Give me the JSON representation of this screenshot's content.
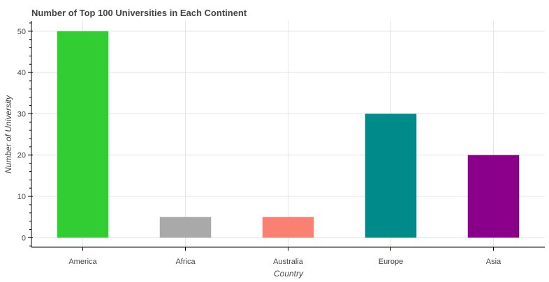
{
  "chart_data": {
    "type": "bar",
    "title": "Number of Top 100 Universities in Each Continent",
    "xlabel": "Country",
    "ylabel": "Number of University",
    "categories": [
      "America",
      "Africa",
      "Australia",
      "Europe",
      "Asia"
    ],
    "values": [
      50,
      5,
      5,
      30,
      20
    ],
    "colors": [
      "#32cd32",
      "#a9a9a9",
      "#fa8072",
      "#008b8b",
      "#8b008b"
    ],
    "ylim": [
      -2.3,
      52.5
    ],
    "yticks": [
      0,
      10,
      20,
      30,
      40,
      50
    ],
    "yminor_ticks": [
      -2,
      2,
      4,
      6,
      8,
      12,
      14,
      16,
      18,
      22,
      24,
      26,
      28,
      32,
      34,
      36,
      38,
      42,
      44,
      46,
      48,
      52
    ],
    "grid": true,
    "legend": "none"
  },
  "colors": {
    "grid": "#e5e5e5",
    "axis": "#000000",
    "text": "#444444"
  }
}
